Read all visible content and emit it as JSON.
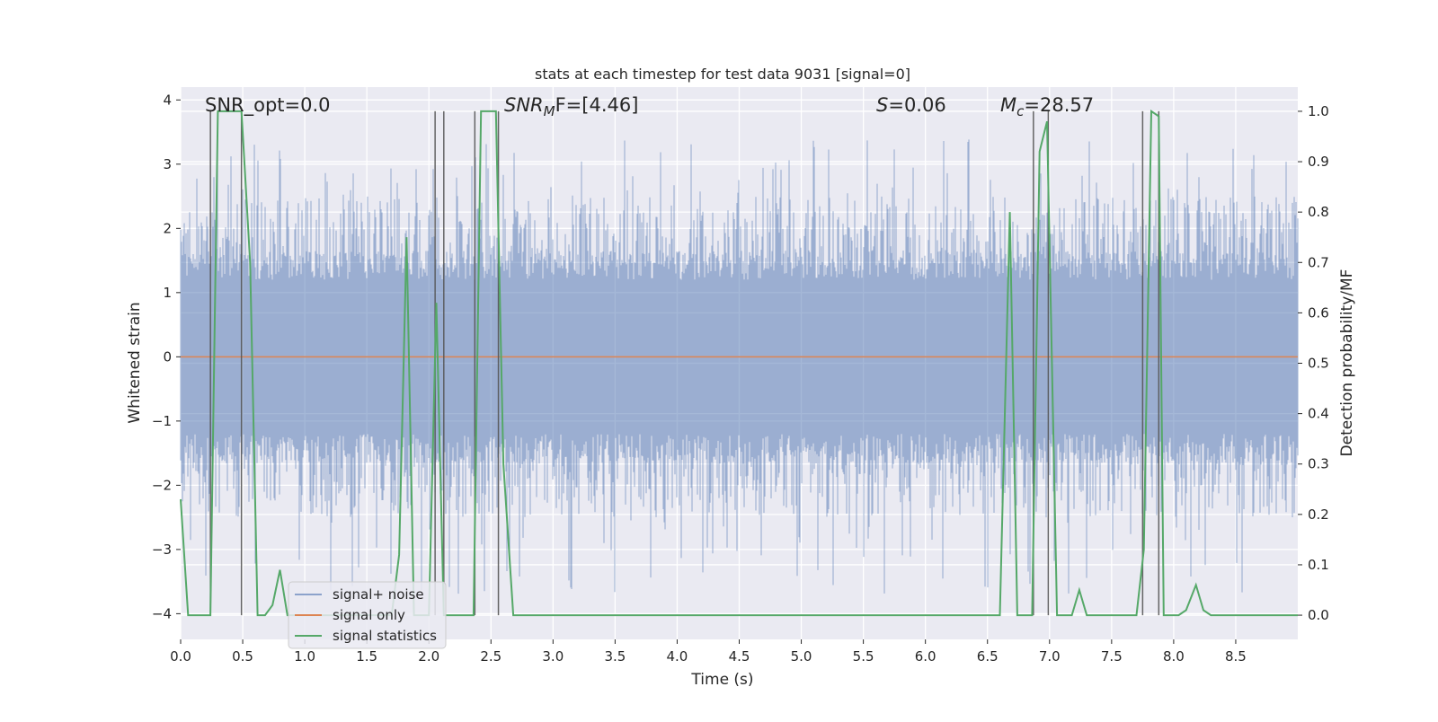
{
  "colors": {
    "background": "#eaeaf2",
    "grid": "#ffffff",
    "noise": "#4c72b0",
    "signal_only": "#dd8452",
    "statistics": "#55a868",
    "marker": "#555555"
  },
  "chart_data": {
    "type": "line",
    "title": "stats at each timestep for test data 9031 [signal=0]",
    "xlabel": "Time (s)",
    "ylabel": "Whitened strain",
    "ylabel_right": "Detection probability/MF",
    "xlim": [
      0,
      9.0
    ],
    "ylim": [
      -4.4,
      4.2
    ],
    "ylim_right": [
      -0.048,
      1.048
    ],
    "x_ticks": [
      0.0,
      0.5,
      1.0,
      1.5,
      2.0,
      2.5,
      3.0,
      3.5,
      4.0,
      4.5,
      5.0,
      5.5,
      6.0,
      6.5,
      7.0,
      7.5,
      8.0,
      8.5
    ],
    "x_tick_labels": [
      "0.0",
      "0.5",
      "1.0",
      "1.5",
      "2.0",
      "2.5",
      "3.0",
      "3.5",
      "4.0",
      "4.5",
      "5.0",
      "5.5",
      "6.0",
      "6.5",
      "7.0",
      "7.5",
      "8.0",
      "8.5"
    ],
    "y_ticks": [
      4,
      3,
      2,
      1,
      0,
      -1,
      -2,
      -3,
      -4
    ],
    "y_tick_labels": [
      "4",
      "3",
      "2",
      "1",
      "0",
      "−1",
      "−2",
      "−3",
      "−4"
    ],
    "y2_ticks": [
      1.0,
      0.9,
      0.8,
      0.7,
      0.6,
      0.5,
      0.4,
      0.3,
      0.2,
      0.1,
      0.0
    ],
    "y2_tick_labels": [
      "1.0",
      "0.9",
      "0.8",
      "0.7",
      "0.6",
      "0.5",
      "0.4",
      "0.3",
      "0.2",
      "0.1",
      "0.0"
    ],
    "annotations": {
      "snr_opt": "SNR_opt=0.0",
      "snr_mf_main": "SNR",
      "snr_mf_sub": "M",
      "snr_mf_tail": "F=[4.46]",
      "s_sym": "S",
      "s_val": "=0.06",
      "mc_main": "M",
      "mc_sub": "c",
      "mc_val": "=28.57"
    },
    "legend": {
      "position": "lower-left",
      "entries": [
        "signal+ noise",
        "signal only",
        "signal statistics"
      ]
    },
    "noise_series": {
      "name": "signal+ noise",
      "description_stat": "whitened strain noise, approx. +/-1.5 with spikes to about +/-3.5"
    },
    "signal_only": {
      "name": "signal only",
      "value": 0.0
    },
    "marker_times": [
      0.24,
      0.49,
      2.05,
      2.12,
      2.37,
      2.56,
      6.87,
      6.99,
      7.75,
      7.88
    ],
    "statistics": {
      "name": "signal statistics",
      "x": [
        0.0,
        0.06,
        0.12,
        0.24,
        0.3,
        0.36,
        0.42,
        0.49,
        0.56,
        0.62,
        0.68,
        0.74,
        0.8,
        0.86,
        0.92,
        1.0,
        1.2,
        1.5,
        1.7,
        1.76,
        1.82,
        1.88,
        1.94,
        2.0,
        2.06,
        2.12,
        2.18,
        2.24,
        2.3,
        2.36,
        2.42,
        2.48,
        2.54,
        2.6,
        2.68,
        3.0,
        4.0,
        5.0,
        5.5,
        6.0,
        6.5,
        6.6,
        6.68,
        6.74,
        6.8,
        6.86,
        6.92,
        6.98,
        7.06,
        7.12,
        7.18,
        7.24,
        7.3,
        7.36,
        7.5,
        7.7,
        7.76,
        7.82,
        7.88,
        7.92,
        7.98,
        8.04,
        8.1,
        8.18,
        8.24,
        8.3,
        8.4,
        8.6,
        9.0
      ],
      "y": [
        0.23,
        0.0,
        0.0,
        0.0,
        1.0,
        1.0,
        1.0,
        1.0,
        0.7,
        0.0,
        0.0,
        0.02,
        0.09,
        0.0,
        0.0,
        0.0,
        0.0,
        0.0,
        0.0,
        0.12,
        0.75,
        0.0,
        0.0,
        0.0,
        0.62,
        0.0,
        0.0,
        0.0,
        0.0,
        0.0,
        1.0,
        1.0,
        1.0,
        0.3,
        0.0,
        0.0,
        0.0,
        0.0,
        0.0,
        0.0,
        0.0,
        0.0,
        0.8,
        0.0,
        0.0,
        0.0,
        0.92,
        0.98,
        0.0,
        0.0,
        0.0,
        0.05,
        0.0,
        0.0,
        0.0,
        0.0,
        0.13,
        1.0,
        0.99,
        0.0,
        0.0,
        0.0,
        0.01,
        0.06,
        0.01,
        0.0,
        0.0,
        0.0,
        0.0
      ]
    }
  }
}
